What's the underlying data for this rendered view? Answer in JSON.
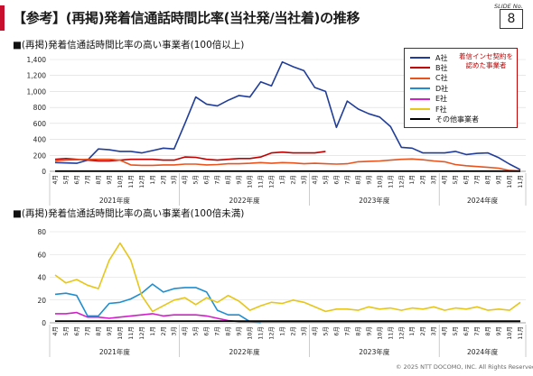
{
  "header": {
    "title": "【参考】(再掲)発着信通話時間比率(当社発/当社着)の推移",
    "slide_no_label": "SLIDE No.",
    "slide_no": "8"
  },
  "footer": {
    "copyright": "© 2025 NTT DOCOMO, INC. All Rights Reserved."
  },
  "legend": {
    "note": "着信インセ契約を認めた事業者",
    "items": [
      {
        "label": "A社",
        "color": "#1f3d99"
      },
      {
        "label": "B社",
        "color": "#c00000"
      },
      {
        "label": "C社",
        "color": "#e8541e"
      },
      {
        "label": "D社",
        "color": "#1f8ed0"
      },
      {
        "label": "E社",
        "color": "#d020c8"
      },
      {
        "label": "F社",
        "color": "#e6c619"
      },
      {
        "label": "その他事業者",
        "color": "#000000"
      }
    ]
  },
  "months": [
    "4月",
    "5月",
    "6月",
    "7月",
    "8月",
    "9月",
    "10月",
    "11月",
    "12月",
    "1月",
    "2月",
    "3月",
    "4月",
    "5月",
    "6月",
    "7月",
    "8月",
    "9月",
    "10月",
    "11月",
    "12月",
    "1月",
    "2月",
    "3月",
    "4月",
    "5月",
    "6月",
    "7月",
    "8月",
    "9月",
    "10月",
    "11月",
    "12月",
    "1月",
    "2月",
    "3月",
    "4月",
    "5月",
    "6月",
    "7月",
    "8月",
    "9月",
    "10月",
    "11月"
  ],
  "years": [
    {
      "label": "2021年度",
      "start": 0,
      "end": 11
    },
    {
      "label": "2022年度",
      "start": 12,
      "end": 23
    },
    {
      "label": "2023年度",
      "start": 24,
      "end": 35
    },
    {
      "label": "2024年度",
      "start": 36,
      "end": 43
    }
  ],
  "chart_data": [
    {
      "type": "line",
      "title": "■(再掲)発着信通話時間比率の高い事業者(100倍以上)",
      "ylim": [
        0,
        1400
      ],
      "yticks": [
        0,
        200,
        400,
        600,
        800,
        1000,
        1200,
        1400
      ],
      "ytick_labels": [
        "0",
        "200",
        "400",
        "600",
        "800",
        "1,000",
        "1,200",
        "1,400"
      ],
      "grid": "horizontal",
      "legend_position": "top-right",
      "series": [
        {
          "name": "A社",
          "color": "#1f3d99",
          "values": [
            110,
            105,
            100,
            140,
            280,
            270,
            250,
            250,
            230,
            260,
            290,
            280,
            600,
            930,
            840,
            820,
            890,
            950,
            930,
            1120,
            1070,
            1370,
            1310,
            1260,
            1050,
            1000,
            550,
            880,
            780,
            720,
            680,
            560,
            300,
            290,
            230,
            230,
            230,
            250,
            210,
            225,
            230,
            170,
            90,
            20
          ]
        },
        {
          "name": "B社",
          "color": "#c00000",
          "values": [
            150,
            160,
            150,
            140,
            130,
            130,
            140,
            150,
            150,
            150,
            140,
            140,
            180,
            175,
            150,
            140,
            150,
            160,
            160,
            180,
            230,
            240,
            230,
            230,
            230,
            250,
            null,
            null,
            null,
            null,
            null,
            null,
            null,
            null,
            null,
            null,
            null,
            null,
            null,
            null,
            null,
            null,
            null,
            null
          ]
        },
        {
          "name": "C社",
          "color": "#e8541e",
          "values": [
            130,
            140,
            145,
            150,
            150,
            150,
            140,
            80,
            75,
            75,
            80,
            80,
            90,
            90,
            80,
            85,
            95,
            95,
            100,
            110,
            100,
            110,
            105,
            95,
            100,
            95,
            90,
            95,
            120,
            125,
            130,
            140,
            150,
            155,
            145,
            130,
            120,
            85,
            70,
            60,
            50,
            40,
            10,
            5
          ]
        },
        {
          "name": "その他事業者",
          "color": "#000000",
          "values": [
            2,
            2,
            2,
            2,
            2,
            2,
            2,
            2,
            2,
            2,
            2,
            2,
            2,
            2,
            2,
            2,
            2,
            2,
            2,
            2,
            2,
            2,
            2,
            2,
            2,
            2,
            2,
            2,
            2,
            2,
            2,
            2,
            2,
            2,
            2,
            2,
            2,
            2,
            2,
            2,
            2,
            2,
            2,
            2
          ]
        }
      ]
    },
    {
      "type": "line",
      "title": "■(再掲)発着信通話時間比率の高い事業者(100倍未満)",
      "ylim": [
        0,
        80
      ],
      "yticks": [
        0,
        20,
        40,
        60,
        80
      ],
      "ytick_labels": [
        "0",
        "20",
        "40",
        "60",
        "80"
      ],
      "grid": "horizontal",
      "series": [
        {
          "name": "D社",
          "color": "#1f8ed0",
          "values": [
            25,
            26,
            24,
            6,
            6,
            17,
            18,
            21,
            26,
            34,
            27,
            30,
            31,
            31,
            27,
            11,
            7,
            7,
            1,
            0,
            null,
            null,
            null,
            null,
            null,
            null,
            null,
            null,
            null,
            null,
            null,
            null,
            null,
            null,
            null,
            null,
            null,
            null,
            null,
            null,
            null,
            null,
            null,
            null
          ]
        },
        {
          "name": "E社",
          "color": "#d020c8",
          "values": [
            8,
            8,
            9,
            5,
            5,
            4,
            5,
            6,
            7,
            8,
            6,
            7,
            7,
            7,
            6,
            4,
            2,
            1,
            1,
            1,
            1,
            1,
            1,
            1,
            1,
            1,
            1,
            1,
            1,
            1,
            1,
            1,
            1,
            1,
            1,
            1,
            1,
            1,
            1,
            1,
            1,
            1,
            1,
            1
          ]
        },
        {
          "name": "F社",
          "color": "#e6c619",
          "values": [
            42,
            35,
            38,
            33,
            30,
            55,
            70,
            55,
            24,
            10,
            15,
            20,
            22,
            16,
            22,
            18,
            24,
            19,
            11,
            15,
            18,
            17,
            20,
            18,
            14,
            10,
            12,
            12,
            11,
            14,
            12,
            13,
            11,
            13,
            12,
            14,
            11,
            13,
            12,
            14,
            11,
            12,
            11,
            18
          ]
        },
        {
          "name": "その他事業者",
          "color": "#000000",
          "values": [
            1.5,
            1.5,
            1.5,
            1.5,
            1.5,
            1.5,
            1.5,
            1.5,
            1.5,
            1.5,
            1.5,
            1.5,
            1.5,
            1.5,
            1.5,
            1.5,
            1.5,
            1.5,
            1.5,
            1.5,
            1.5,
            1.5,
            1.5,
            1.5,
            1.5,
            1.5,
            1.5,
            1.5,
            1.5,
            1.5,
            1.5,
            1.5,
            1.5,
            1.5,
            1.5,
            1.5,
            1.5,
            1.5,
            1.5,
            1.5,
            1.5,
            1.5,
            1.5,
            1.5
          ]
        }
      ]
    }
  ]
}
